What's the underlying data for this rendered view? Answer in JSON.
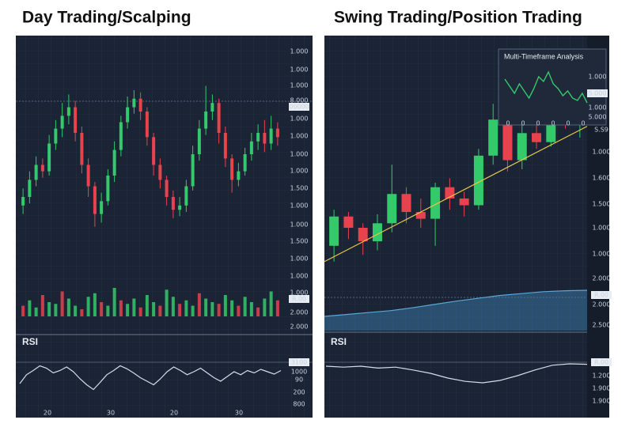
{
  "chart_data": [
    {
      "type": "candlestick",
      "title": "Day Trading/Scalping",
      "ohlc": [
        [
          26,
          34,
          22,
          30
        ],
        [
          30,
          42,
          27,
          38
        ],
        [
          38,
          49,
          35,
          45
        ],
        [
          45,
          48,
          39,
          42
        ],
        [
          42,
          59,
          40,
          55
        ],
        [
          55,
          66,
          52,
          62
        ],
        [
          62,
          74,
          58,
          68
        ],
        [
          68,
          78,
          64,
          72
        ],
        [
          72,
          75,
          56,
          60
        ],
        [
          60,
          63,
          41,
          45
        ],
        [
          45,
          48,
          30,
          35
        ],
        [
          35,
          37,
          16,
          22
        ],
        [
          22,
          32,
          18,
          28
        ],
        [
          28,
          43,
          26,
          40
        ],
        [
          40,
          56,
          37,
          52
        ],
        [
          52,
          68,
          49,
          65
        ],
        [
          65,
          77,
          62,
          72
        ],
        [
          72,
          80,
          69,
          76
        ],
        [
          76,
          79,
          66,
          70
        ],
        [
          70,
          72,
          54,
          58
        ],
        [
          58,
          60,
          40,
          45
        ],
        [
          45,
          48,
          34,
          38
        ],
        [
          38,
          40,
          26,
          30
        ],
        [
          30,
          33,
          20,
          24
        ],
        [
          24,
          30,
          21,
          26
        ],
        [
          26,
          38,
          23,
          35
        ],
        [
          35,
          54,
          33,
          50
        ],
        [
          50,
          66,
          47,
          62
        ],
        [
          62,
          82,
          59,
          70
        ],
        [
          70,
          78,
          66,
          74
        ],
        [
          74,
          76,
          55,
          60
        ],
        [
          60,
          63,
          44,
          48
        ],
        [
          48,
          50,
          32,
          38
        ],
        [
          38,
          46,
          35,
          42
        ],
        [
          42,
          53,
          40,
          50
        ],
        [
          50,
          60,
          47,
          56
        ],
        [
          56,
          64,
          52,
          60
        ],
        [
          60,
          66,
          51,
          55
        ],
        [
          55,
          68,
          52,
          62
        ],
        [
          62,
          65,
          54,
          58
        ]
      ],
      "ylim": [
        0,
        100
      ],
      "price_axis_labels": [
        "1.000",
        "1.000",
        "1.000",
        "8.000",
        "00000",
        "1.000",
        "1.000",
        "1.000",
        "1.000",
        "1.500",
        "1.000",
        "1.000",
        "1.500",
        "1.000"
      ],
      "volume": [
        30,
        45,
        25,
        60,
        40,
        35,
        70,
        50,
        30,
        20,
        55,
        65,
        40,
        30,
        80,
        45,
        35,
        50,
        25,
        60,
        40,
        30,
        75,
        55,
        35,
        45,
        30,
        65,
        50,
        40,
        35,
        60,
        45,
        30,
        55,
        40,
        25,
        50,
        70,
        45
      ],
      "volume_ylim": [
        0,
        100
      ],
      "volume_axis_labels": [
        "1.000",
        "1.000",
        "R.00",
        "2.000",
        "2.000"
      ],
      "rsi_title": "RSI",
      "rsi": [
        40,
        55,
        62,
        70,
        66,
        58,
        62,
        68,
        60,
        48,
        38,
        30,
        42,
        55,
        62,
        70,
        65,
        58,
        50,
        44,
        38,
        48,
        60,
        68,
        62,
        55,
        60,
        66,
        58,
        50,
        44,
        52,
        60,
        55,
        62,
        58,
        64,
        60,
        56,
        62
      ],
      "rsi_ylim": [
        0,
        100
      ],
      "rsi_axis_labels": [
        "3100",
        "1000",
        "90",
        "200",
        "800"
      ],
      "x_labels": [
        "20",
        "30",
        "20",
        "30"
      ],
      "colors": {
        "up": "#34c96a",
        "down": "#e8424f"
      }
    },
    {
      "type": "candlestick",
      "title": "Swing Trading/Position Trading",
      "ohlc": [
        [
          12,
          28,
          5,
          25
        ],
        [
          25,
          27,
          15,
          20
        ],
        [
          20,
          22,
          8,
          14
        ],
        [
          14,
          26,
          10,
          22
        ],
        [
          22,
          48,
          18,
          35
        ],
        [
          35,
          38,
          22,
          27
        ],
        [
          27,
          33,
          20,
          24
        ],
        [
          24,
          40,
          12,
          38
        ],
        [
          38,
          42,
          28,
          33
        ],
        [
          33,
          36,
          25,
          30
        ],
        [
          30,
          55,
          28,
          52
        ],
        [
          52,
          75,
          48,
          68
        ],
        [
          68,
          72,
          45,
          50
        ],
        [
          50,
          66,
          46,
          62
        ],
        [
          62,
          66,
          55,
          58
        ],
        [
          58,
          70,
          56,
          68
        ],
        [
          68,
          72,
          64,
          66
        ],
        [
          66,
          72,
          60,
          70
        ]
      ],
      "ylim": [
        0,
        100
      ],
      "trendline": [
        5,
        65
      ],
      "price_axis_labels": [
        "S.S9",
        "1.000",
        "1.600",
        "1.500",
        "1.000",
        "1.000",
        "2.000",
        "R.00",
        "2.000",
        "2.500"
      ],
      "area": [
        30,
        34,
        38,
        42,
        48,
        55,
        62,
        68,
        74,
        78,
        82,
        84,
        85
      ],
      "area_ylim": [
        0,
        100
      ],
      "rsi_title": "RSI",
      "rsi": [
        70,
        68,
        70,
        66,
        68,
        62,
        55,
        45,
        38,
        35,
        40,
        50,
        62,
        72,
        75,
        74
      ],
      "rsi_ylim": [
        0,
        100
      ],
      "rsi_axis_labels": [
        "R.00",
        "1.200",
        "1.900",
        "1.900"
      ],
      "inset": {
        "title": "Multi-Timeframe Analysis",
        "values": [
          70,
          55,
          40,
          60,
          45,
          30,
          50,
          75,
          65,
          85,
          60,
          50,
          35,
          45,
          30,
          25,
          40,
          20
        ],
        "ylim": [
          0,
          100
        ],
        "axis_labels": [
          "1.000",
          "5.000",
          "1.000",
          "5.000"
        ],
        "x_labels": [
          "0",
          "0",
          "0",
          "0",
          "0",
          "0"
        ]
      },
      "colors": {
        "up": "#34c96a",
        "down": "#e8424f",
        "trend": "#e8c84a",
        "area": "#3f86b8"
      }
    }
  ]
}
